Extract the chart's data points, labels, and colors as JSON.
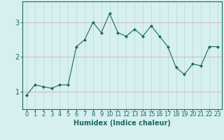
{
  "x": [
    0,
    1,
    2,
    3,
    4,
    5,
    6,
    7,
    8,
    9,
    10,
    11,
    12,
    13,
    14,
    15,
    16,
    17,
    18,
    19,
    20,
    21,
    22,
    23
  ],
  "y": [
    0.9,
    1.2,
    1.15,
    1.1,
    1.2,
    1.2,
    2.3,
    2.5,
    3.0,
    2.7,
    3.25,
    2.7,
    2.6,
    2.8,
    2.6,
    2.9,
    2.6,
    2.3,
    1.7,
    1.5,
    1.8,
    1.75,
    2.3,
    2.3
  ],
  "xlabel": "Humidex (Indice chaleur)",
  "yticks": [
    1,
    2,
    3
  ],
  "ylim": [
    0.5,
    3.6
  ],
  "xlim": [
    -0.5,
    23.5
  ],
  "line_color": "#1a6b5e",
  "marker_color": "#1a6b5e",
  "bg_color": "#d6efef",
  "grid_color": "#b8d8d8",
  "grid_hcolor": "#d4a0a0",
  "xlabel_fontsize": 7,
  "tick_fontsize": 6
}
